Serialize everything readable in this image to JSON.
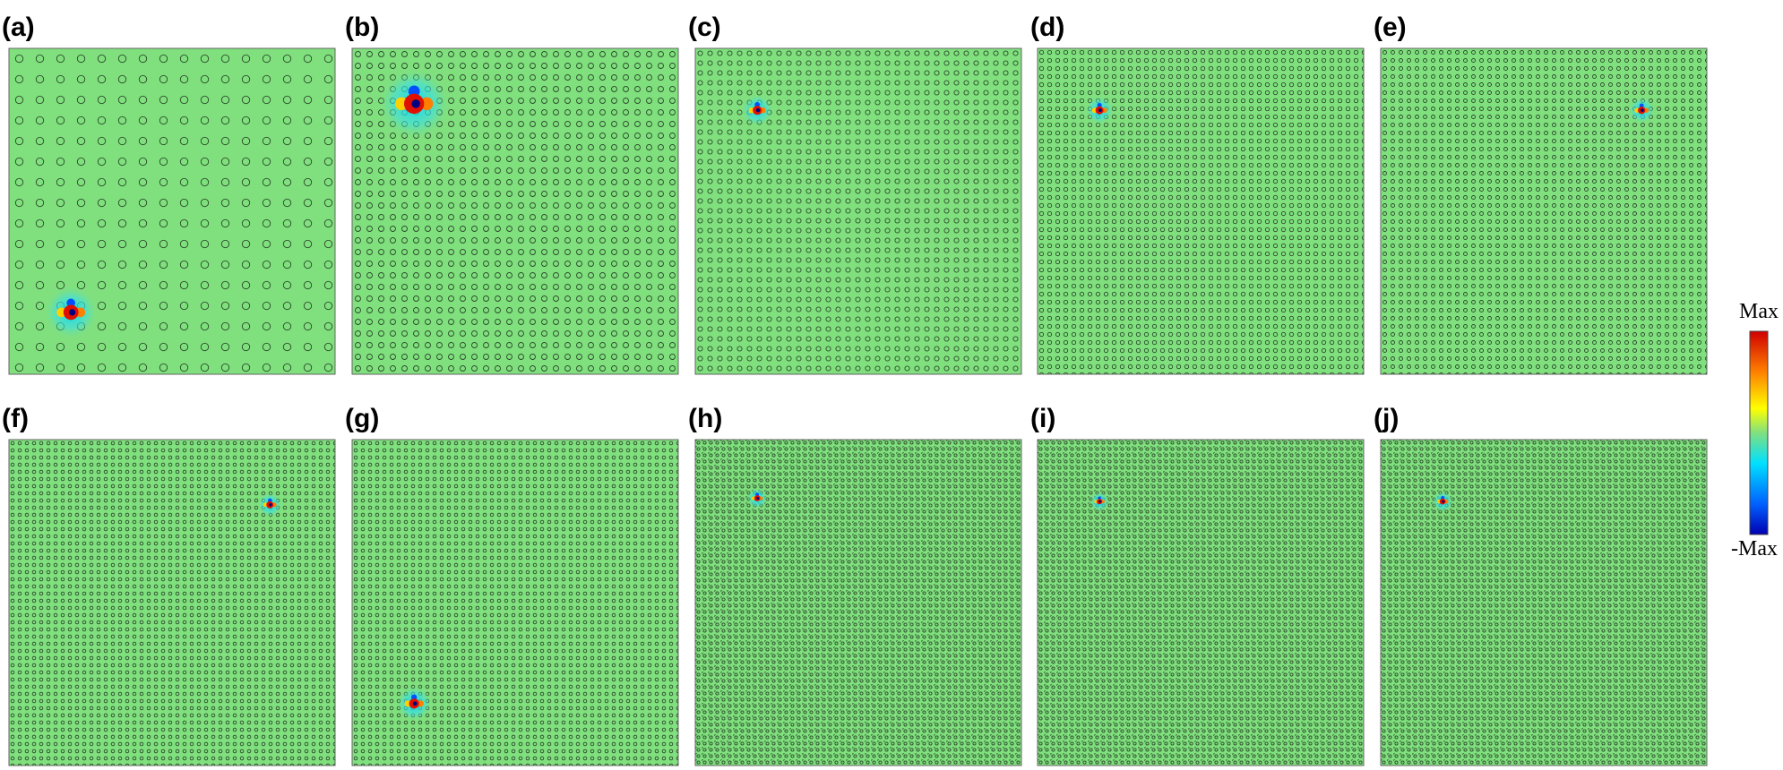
{
  "panels": [
    {
      "label": "(a)"
    },
    {
      "label": "(b)"
    },
    {
      "label": "(c)"
    },
    {
      "label": "(d)"
    },
    {
      "label": "(e)"
    },
    {
      "label": "(f)"
    },
    {
      "label": "(g)"
    },
    {
      "label": "(h)"
    },
    {
      "label": "(i)"
    },
    {
      "label": "(j)"
    }
  ],
  "colorbar": {
    "max_label": "Max",
    "min_label": "-Max"
  }
}
